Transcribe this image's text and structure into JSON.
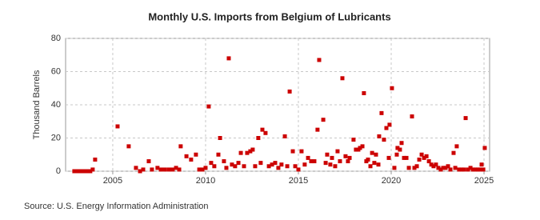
{
  "chart_data": {
    "type": "scatter",
    "title": "Monthly U.S. Imports from Belgium of Lubricants",
    "y_label": "Thousand Barrels",
    "source": "Source: U.S. Energy Information Administration",
    "color": "#cc0000",
    "grid": true,
    "xlim": [
      2002.46,
      2025.3
    ],
    "ylim": [
      0,
      80
    ],
    "xticks": [
      2005,
      2010,
      2015,
      2020,
      2025
    ],
    "yticks": [
      0,
      20,
      40,
      60,
      80
    ],
    "x": [
      2002.93,
      2003.1,
      2003.28,
      2003.45,
      2003.62,
      2003.79,
      2003.92,
      2004.05,
      2005.26,
      2005.86,
      2006.25,
      2006.47,
      2006.64,
      2006.94,
      2007.11,
      2007.41,
      2007.59,
      2007.8,
      2008.02,
      2008.23,
      2008.41,
      2008.58,
      2008.66,
      2008.97,
      2009.22,
      2009.48,
      2009.66,
      2009.83,
      2010.0,
      2010.17,
      2010.3,
      2010.47,
      2010.69,
      2010.78,
      2010.99,
      2011.12,
      2011.25,
      2011.42,
      2011.59,
      2011.77,
      2011.9,
      2012.07,
      2012.24,
      2012.41,
      2012.54,
      2012.67,
      2012.84,
      2012.97,
      2013.06,
      2013.23,
      2013.41,
      2013.58,
      2013.75,
      2013.92,
      2014.09,
      2014.27,
      2014.4,
      2014.53,
      2014.7,
      2014.83,
      2015.0,
      2015.17,
      2015.34,
      2015.52,
      2015.69,
      2015.86,
      2016.03,
      2016.12,
      2016.34,
      2016.47,
      2016.55,
      2016.72,
      2016.81,
      2016.98,
      2017.11,
      2017.24,
      2017.37,
      2017.54,
      2017.67,
      2017.76,
      2017.97,
      2018.1,
      2018.23,
      2018.32,
      2018.45,
      2018.53,
      2018.66,
      2018.75,
      2018.88,
      2018.97,
      2019.09,
      2019.18,
      2019.31,
      2019.35,
      2019.48,
      2019.61,
      2019.74,
      2019.87,
      2019.91,
      2020.04,
      2020.17,
      2020.3,
      2020.34,
      2020.47,
      2020.56,
      2020.69,
      2020.82,
      2020.95,
      2021.12,
      2021.25,
      2021.38,
      2021.51,
      2021.64,
      2021.77,
      2021.9,
      2022.03,
      2022.16,
      2022.28,
      2022.41,
      2022.54,
      2022.67,
      2022.8,
      2022.93,
      2023.06,
      2023.19,
      2023.36,
      2023.45,
      2023.53,
      2023.66,
      2023.79,
      2023.92,
      2024.01,
      2024.14,
      2024.27,
      2024.4,
      2024.53,
      2024.66,
      2024.78,
      2024.87,
      2024.96,
      2025.04
    ],
    "values": [
      0,
      0,
      0,
      0,
      0,
      0,
      1,
      7,
      27,
      15,
      2,
      0,
      1,
      6,
      1,
      2,
      1,
      1,
      1,
      1,
      2,
      1,
      15,
      9,
      7,
      10,
      1,
      1,
      2,
      39,
      5,
      3,
      10,
      20,
      6,
      2,
      68,
      4,
      3,
      5,
      11,
      3,
      11,
      12,
      13,
      3,
      20,
      5,
      25,
      23,
      3,
      4,
      5,
      2,
      4,
      21,
      3,
      48,
      12,
      3,
      1,
      12,
      4,
      8,
      6,
      6,
      25,
      67,
      31,
      5,
      10,
      4,
      8,
      3,
      12,
      6,
      56,
      9,
      6,
      8,
      19,
      13,
      13,
      14,
      15,
      47,
      6,
      7,
      3,
      11,
      5,
      10,
      4,
      21,
      35,
      19,
      26,
      8,
      28,
      50,
      2,
      10,
      14,
      13,
      17,
      8,
      8,
      2,
      33,
      2,
      3,
      7,
      10,
      8,
      9,
      6,
      4,
      3,
      4,
      2,
      1,
      2,
      2,
      3,
      1,
      11,
      2,
      15,
      1,
      1,
      1,
      32,
      1,
      2,
      1,
      1,
      1,
      1,
      4,
      1,
      14
    ]
  }
}
